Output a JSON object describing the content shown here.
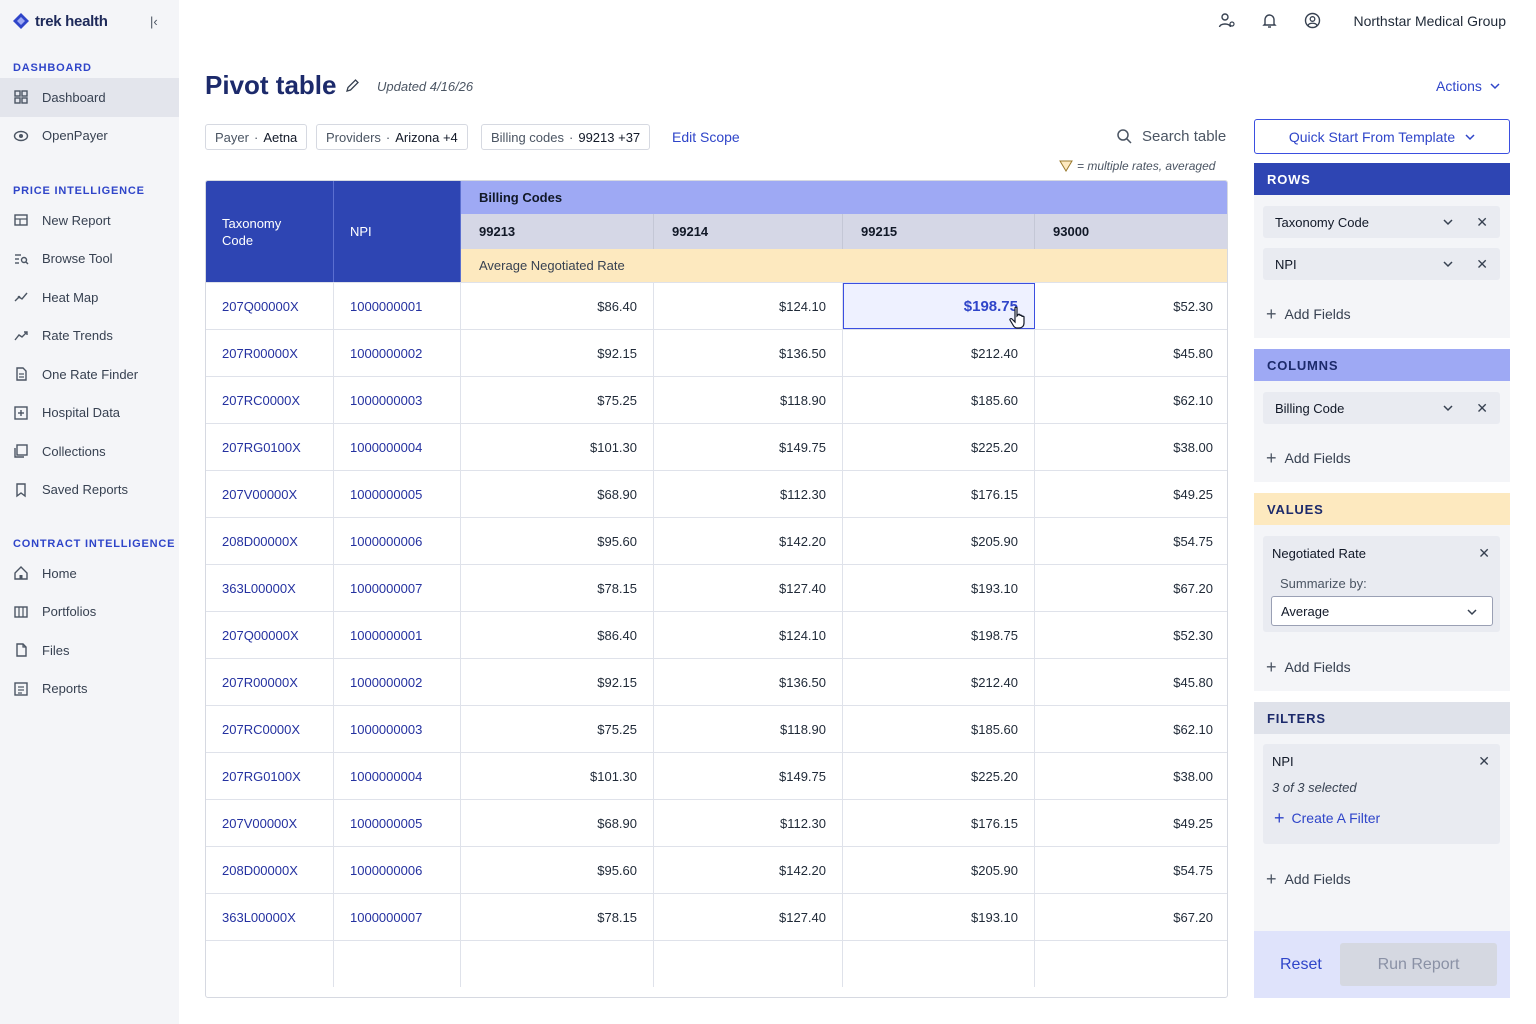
{
  "app": {
    "brand": "trek health",
    "org_name": "Northstar Medical Group"
  },
  "sidebar": {
    "sections": [
      {
        "heading": "DASHBOARD",
        "items": [
          {
            "label": "Dashboard",
            "icon": "grid-icon",
            "active": true
          },
          {
            "label": "OpenPayer",
            "icon": "eye-icon"
          }
        ]
      },
      {
        "heading": "PRICE INTELLIGENCE",
        "items": [
          {
            "label": "New Report",
            "icon": "table-icon"
          },
          {
            "label": "Browse Tool",
            "icon": "list-search-icon"
          },
          {
            "label": "Heat Map",
            "icon": "heatmap-icon"
          },
          {
            "label": "Rate Trends",
            "icon": "trend-icon"
          },
          {
            "label": "One Rate Finder",
            "icon": "document-icon"
          },
          {
            "label": "Hospital Data",
            "icon": "plus-square-icon"
          },
          {
            "label": "Collections",
            "icon": "collections-icon"
          },
          {
            "label": "Saved Reports",
            "icon": "bookmark-icon"
          }
        ]
      },
      {
        "heading": "CONTRACT INTELLIGENCE",
        "items": [
          {
            "label": "Home",
            "icon": "home-icon"
          },
          {
            "label": "Portfolios",
            "icon": "columns-icon"
          },
          {
            "label": "Files",
            "icon": "file-icon"
          },
          {
            "label": "Reports",
            "icon": "report-icon"
          }
        ]
      }
    ]
  },
  "header": {
    "title": "Pivot table",
    "updated": "Updated 4/16/26",
    "actions_label": "Actions"
  },
  "scope": {
    "chips": [
      {
        "label": "Payer",
        "value": "Aetna"
      },
      {
        "label": "Providers",
        "value": "Arizona +4"
      },
      {
        "label": "Billing codes",
        "value": "99213 +37"
      }
    ],
    "edit_label": "Edit Scope",
    "search_placeholder": "Search table",
    "legend_note": "= multiple rates, averaged"
  },
  "table": {
    "col_headers": {
      "taxonomy": "Taxonomy Code",
      "npi": "NPI",
      "group": "Billing Codes",
      "value_label": "Average Negotiated Rate"
    },
    "codes": [
      "99213",
      "99214",
      "99215",
      "93000"
    ],
    "rows": [
      {
        "tax": "207Q00000X",
        "npi": "1000000001",
        "vals": [
          "$86.40",
          "$124.10",
          "$198.75",
          "$52.30"
        ]
      },
      {
        "tax": "207R00000X",
        "npi": "1000000002",
        "vals": [
          "$92.15",
          "$136.50",
          "$212.40",
          "$45.80"
        ]
      },
      {
        "tax": "207RC0000X",
        "npi": "1000000003",
        "vals": [
          "$75.25",
          "$118.90",
          "$185.60",
          "$62.10"
        ]
      },
      {
        "tax": "207RG0100X",
        "npi": "1000000004",
        "vals": [
          "$101.30",
          "$149.75",
          "$225.20",
          "$38.00"
        ]
      },
      {
        "tax": "207V00000X",
        "npi": "1000000005",
        "vals": [
          "$68.90",
          "$112.30",
          "$176.15",
          "$49.25"
        ]
      },
      {
        "tax": "208D00000X",
        "npi": "1000000006",
        "vals": [
          "$95.60",
          "$142.20",
          "$205.90",
          "$54.75"
        ]
      },
      {
        "tax": "363L00000X",
        "npi": "1000000007",
        "vals": [
          "$78.15",
          "$127.40",
          "$193.10",
          "$67.20"
        ]
      },
      {
        "tax": "207Q00000X",
        "npi": "1000000001",
        "vals": [
          "$86.40",
          "$124.10",
          "$198.75",
          "$52.30"
        ]
      },
      {
        "tax": "207R00000X",
        "npi": "1000000002",
        "vals": [
          "$92.15",
          "$136.50",
          "$212.40",
          "$45.80"
        ]
      },
      {
        "tax": "207RC0000X",
        "npi": "1000000003",
        "vals": [
          "$75.25",
          "$118.90",
          "$185.60",
          "$62.10"
        ]
      },
      {
        "tax": "207RG0100X",
        "npi": "1000000004",
        "vals": [
          "$101.30",
          "$149.75",
          "$225.20",
          "$38.00"
        ]
      },
      {
        "tax": "207V00000X",
        "npi": "1000000005",
        "vals": [
          "$68.90",
          "$112.30",
          "$176.15",
          "$49.25"
        ]
      },
      {
        "tax": "208D00000X",
        "npi": "1000000006",
        "vals": [
          "$95.60",
          "$142.20",
          "$205.90",
          "$54.75"
        ]
      },
      {
        "tax": "363L00000X",
        "npi": "1000000007",
        "vals": [
          "$78.15",
          "$127.40",
          "$193.10",
          "$67.20"
        ]
      }
    ],
    "selected_cell": {
      "row": 0,
      "col": 2
    },
    "averaged_marks": [
      {
        "row": 0,
        "col": 2
      },
      {
        "row": 3,
        "col": 3
      },
      {
        "row": 6,
        "col": 1
      },
      {
        "row": 13,
        "col": 1
      }
    ]
  },
  "panel": {
    "quick_start": "Quick Start From Template",
    "rows_heading": "ROWS",
    "rows_fields": [
      "Taxonomy Code",
      "NPI"
    ],
    "columns_heading": "COLUMNS",
    "columns_fields": [
      "Billing Code"
    ],
    "values_heading": "VALUES",
    "value_field": "Negotiated Rate",
    "summarize_label": "Summarize by:",
    "summarize_value": "Average",
    "filters_heading": "FILTERS",
    "filter_field": "NPI",
    "filter_status": "3 of 3 selected",
    "create_filter": "Create A Filter",
    "add_fields": "Add Fields",
    "reset": "Reset",
    "run": "Run Report"
  },
  "colors": {
    "brand_dark": "#2e45b3",
    "brand_light": "#9ea9f4",
    "accent_yellow": "#fde9bf",
    "link": "#2f45c9"
  }
}
